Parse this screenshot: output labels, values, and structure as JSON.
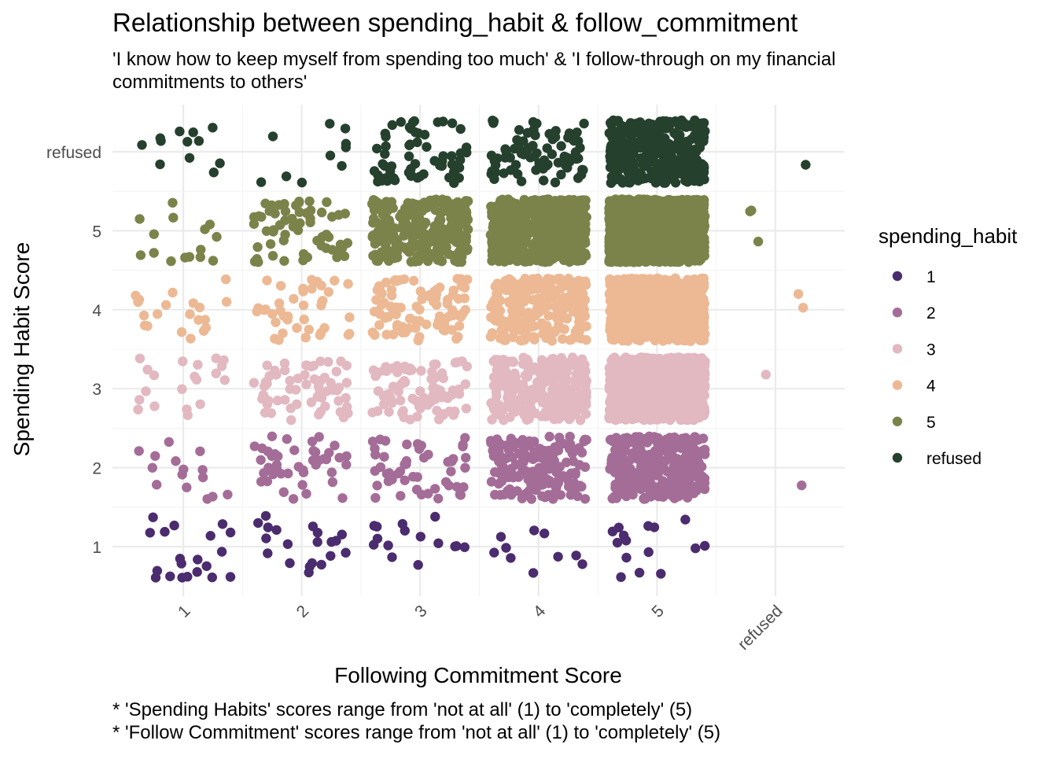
{
  "chart_data": {
    "type": "scatter",
    "jitter": true,
    "title": "Relationship between spending_habit & follow_commitment",
    "subtitle_lines": [
      "'I know how to keep myself from spending too much' & 'I follow-through on my financial",
      "commitments to others'"
    ],
    "xlabel": "Following Commitment Score",
    "ylabel": "Spending Habit Score",
    "x_categories": [
      "1",
      "2",
      "3",
      "4",
      "5",
      "refused"
    ],
    "y_categories": [
      "1",
      "2",
      "3",
      "4",
      "5",
      "refused"
    ],
    "caption_lines": [
      "* 'Spending Habits' scores range from 'not at all' (1) to 'completely' (5)",
      "* 'Follow Commitment' scores range from 'not at all' (1) to 'completely' (5)"
    ],
    "legend": {
      "title": "spending_habit",
      "position": "right",
      "entries": [
        {
          "label": "1",
          "color": "#4b2c6e"
        },
        {
          "label": "2",
          "color": "#a46d98"
        },
        {
          "label": "3",
          "color": "#e2b8c1"
        },
        {
          "label": "4",
          "color": "#ecb994"
        },
        {
          "label": "5",
          "color": "#7b834b"
        },
        {
          "label": "refused",
          "color": "#26402e"
        }
      ]
    },
    "grid": true,
    "approx_counts": [
      [
        20,
        20,
        15,
        10,
        15,
        0
      ],
      [
        15,
        45,
        50,
        160,
        300,
        1
      ],
      [
        20,
        60,
        90,
        250,
        1100,
        1
      ],
      [
        20,
        40,
        90,
        240,
        1000,
        2
      ],
      [
        15,
        60,
        250,
        550,
        1500,
        3
      ],
      [
        12,
        10,
        60,
        80,
        350,
        1
      ]
    ]
  }
}
